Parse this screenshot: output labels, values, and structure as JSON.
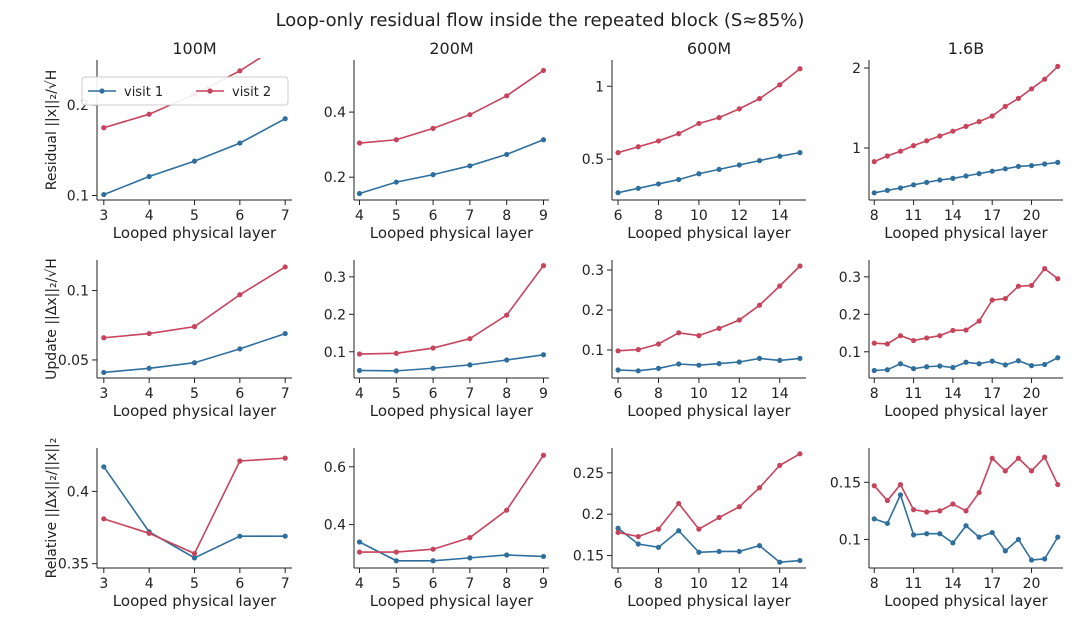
{
  "title": "Loop-only residual flow inside the repeated block (S≈85%)",
  "columns": [
    "100M",
    "200M",
    "600M",
    "1.6B"
  ],
  "row_labels": [
    "Residual  ||x||₂/√H",
    "Update  ||Δx||₂/√H",
    "Relative  ||Δx||₂/||x||₂"
  ],
  "legend": [
    {
      "name": "visit 1",
      "color": "#2e6f9e"
    },
    {
      "name": "visit 2",
      "color": "#c8435c"
    }
  ],
  "chart_data": [
    {
      "type": "line",
      "column": "100M",
      "row": "Residual",
      "xlabel": "Looped physical layer",
      "ylabel": "Residual  ||x||₂/√H",
      "x": [
        3,
        4,
        5,
        6,
        7
      ],
      "xticks": [
        3,
        4,
        5,
        6,
        7
      ],
      "xlim": [
        2.85,
        7.15
      ],
      "yticks": [
        0.1,
        0.2
      ],
      "ylim": [
        0.095,
        0.25
      ],
      "series": [
        {
          "name": "visit 1",
          "values": [
            0.101,
            0.121,
            0.138,
            0.158,
            0.185
          ]
        },
        {
          "name": "visit 2",
          "values": [
            0.175,
            0.19,
            0.212,
            0.238,
            0.27
          ]
        }
      ]
    },
    {
      "type": "line",
      "column": "200M",
      "row": "Residual",
      "xlabel": "Looped physical layer",
      "x": [
        4,
        5,
        6,
        7,
        8,
        9
      ],
      "xticks": [
        4,
        5,
        6,
        7,
        8,
        9
      ],
      "xlim": [
        3.85,
        9.15
      ],
      "yticks": [
        0.2,
        0.4
      ],
      "ylim": [
        0.13,
        0.56
      ],
      "series": [
        {
          "name": "visit 1",
          "values": [
            0.15,
            0.185,
            0.208,
            0.235,
            0.27,
            0.315
          ]
        },
        {
          "name": "visit 2",
          "values": [
            0.305,
            0.315,
            0.35,
            0.392,
            0.45,
            0.528
          ]
        }
      ]
    },
    {
      "type": "line",
      "column": "600M",
      "row": "Residual",
      "xlabel": "Looped physical layer",
      "x": [
        6,
        7,
        8,
        9,
        10,
        11,
        12,
        13,
        14,
        15
      ],
      "xticks": [
        6,
        8,
        10,
        12,
        14
      ],
      "xlim": [
        5.7,
        15.3
      ],
      "yticks": [
        0.5,
        1.0
      ],
      "ylim": [
        0.22,
        1.18
      ],
      "series": [
        {
          "name": "visit 1",
          "values": [
            0.27,
            0.3,
            0.33,
            0.36,
            0.4,
            0.43,
            0.46,
            0.49,
            0.52,
            0.545
          ]
        },
        {
          "name": "visit 2",
          "values": [
            0.545,
            0.585,
            0.625,
            0.675,
            0.745,
            0.785,
            0.845,
            0.915,
            1.01,
            1.12
          ]
        }
      ]
    },
    {
      "type": "line",
      "column": "1.6B",
      "row": "Residual",
      "xlabel": "Looped physical layer",
      "x": [
        8,
        9,
        10,
        11,
        12,
        13,
        14,
        15,
        16,
        17,
        18,
        19,
        20,
        21,
        22
      ],
      "xticks": [
        8,
        11,
        14,
        17,
        20
      ],
      "xlim": [
        7.6,
        22.4
      ],
      "yticks": [
        1,
        2
      ],
      "ylim": [
        0.35,
        2.1
      ],
      "series": [
        {
          "name": "visit 1",
          "values": [
            0.44,
            0.47,
            0.5,
            0.54,
            0.57,
            0.6,
            0.62,
            0.65,
            0.68,
            0.71,
            0.74,
            0.77,
            0.78,
            0.8,
            0.82
          ]
        },
        {
          "name": "visit 2",
          "values": [
            0.83,
            0.9,
            0.96,
            1.03,
            1.09,
            1.15,
            1.21,
            1.27,
            1.33,
            1.4,
            1.52,
            1.62,
            1.74,
            1.86,
            2.02
          ]
        }
      ]
    },
    {
      "type": "line",
      "column": "100M",
      "row": "Update",
      "xlabel": "Looped physical layer",
      "ylabel": "Update  ||Δx||₂/√H",
      "x": [
        3,
        4,
        5,
        6,
        7
      ],
      "xticks": [
        3,
        4,
        5,
        6,
        7
      ],
      "xlim": [
        2.85,
        7.15
      ],
      "yticks": [
        0.05,
        0.1
      ],
      "ylim": [
        0.037,
        0.122
      ],
      "series": [
        {
          "name": "visit 1",
          "values": [
            0.041,
            0.044,
            0.048,
            0.058,
            0.069
          ]
        },
        {
          "name": "visit 2",
          "values": [
            0.066,
            0.069,
            0.074,
            0.097,
            0.117
          ]
        }
      ]
    },
    {
      "type": "line",
      "column": "200M",
      "row": "Update",
      "xlabel": "Looped physical layer",
      "x": [
        4,
        5,
        6,
        7,
        8,
        9
      ],
      "xticks": [
        4,
        5,
        6,
        7,
        8,
        9
      ],
      "xlim": [
        3.85,
        9.15
      ],
      "yticks": [
        0.1,
        0.2,
        0.3
      ],
      "ylim": [
        0.03,
        0.345
      ],
      "series": [
        {
          "name": "visit 1",
          "values": [
            0.05,
            0.049,
            0.056,
            0.065,
            0.078,
            0.092
          ]
        },
        {
          "name": "visit 2",
          "values": [
            0.094,
            0.096,
            0.11,
            0.135,
            0.198,
            0.33
          ]
        }
      ]
    },
    {
      "type": "line",
      "column": "600M",
      "row": "Update",
      "xlabel": "Looped physical layer",
      "x": [
        6,
        7,
        8,
        9,
        10,
        11,
        12,
        13,
        14,
        15
      ],
      "xticks": [
        6,
        8,
        10,
        12,
        14
      ],
      "xlim": [
        5.7,
        15.3
      ],
      "yticks": [
        0.1,
        0.2,
        0.3
      ],
      "ylim": [
        0.03,
        0.325
      ],
      "series": [
        {
          "name": "visit 1",
          "values": [
            0.05,
            0.048,
            0.054,
            0.065,
            0.062,
            0.066,
            0.07,
            0.079,
            0.074,
            0.079
          ]
        },
        {
          "name": "visit 2",
          "values": [
            0.098,
            0.101,
            0.115,
            0.143,
            0.136,
            0.154,
            0.175,
            0.212,
            0.26,
            0.31
          ]
        }
      ]
    },
    {
      "type": "line",
      "column": "1.6B",
      "row": "Update",
      "xlabel": "Looped physical layer",
      "x": [
        8,
        9,
        10,
        11,
        12,
        13,
        14,
        15,
        16,
        17,
        18,
        19,
        20,
        21,
        22
      ],
      "xticks": [
        8,
        11,
        14,
        17,
        20
      ],
      "xlim": [
        7.6,
        22.4
      ],
      "yticks": [
        0.1,
        0.2,
        0.3
      ],
      "ylim": [
        0.03,
        0.345
      ],
      "series": [
        {
          "name": "visit 1",
          "values": [
            0.05,
            0.052,
            0.068,
            0.055,
            0.06,
            0.062,
            0.058,
            0.072,
            0.068,
            0.075,
            0.065,
            0.076,
            0.063,
            0.066,
            0.084
          ]
        },
        {
          "name": "visit 2",
          "values": [
            0.123,
            0.121,
            0.143,
            0.13,
            0.137,
            0.143,
            0.157,
            0.158,
            0.182,
            0.238,
            0.242,
            0.275,
            0.277,
            0.322,
            0.295
          ]
        }
      ]
    },
    {
      "type": "line",
      "column": "100M",
      "row": "Relative",
      "xlabel": "Looped physical layer",
      "ylabel": "Relative  ||Δx||₂/||x||₂",
      "x": [
        3,
        4,
        5,
        6,
        7
      ],
      "xticks": [
        3,
        4,
        5,
        6,
        7
      ],
      "xlim": [
        2.85,
        7.15
      ],
      "yticks": [
        0.35,
        0.4
      ],
      "ylim": [
        0.347,
        0.43
      ],
      "series": [
        {
          "name": "visit 1",
          "values": [
            0.417,
            0.372,
            0.354,
            0.369,
            0.369
          ]
        },
        {
          "name": "visit 2",
          "values": [
            0.381,
            0.371,
            0.357,
            0.421,
            0.423
          ]
        }
      ]
    },
    {
      "type": "line",
      "column": "200M",
      "row": "Relative",
      "xlabel": "Looped physical layer",
      "x": [
        4,
        5,
        6,
        7,
        8,
        9
      ],
      "xticks": [
        4,
        5,
        6,
        7,
        8,
        9
      ],
      "xlim": [
        3.85,
        9.15
      ],
      "yticks": [
        0.4,
        0.6
      ],
      "ylim": [
        0.25,
        0.665
      ],
      "series": [
        {
          "name": "visit 1",
          "values": [
            0.34,
            0.275,
            0.275,
            0.285,
            0.295,
            0.29
          ]
        },
        {
          "name": "visit 2",
          "values": [
            0.305,
            0.305,
            0.315,
            0.355,
            0.45,
            0.64
          ]
        }
      ]
    },
    {
      "type": "line",
      "column": "600M",
      "row": "Relative",
      "xlabel": "Looped physical layer",
      "x": [
        6,
        7,
        8,
        9,
        10,
        11,
        12,
        13,
        14,
        15
      ],
      "xticks": [
        6,
        8,
        10,
        12,
        14
      ],
      "xlim": [
        5.7,
        15.3
      ],
      "yticks": [
        0.15,
        0.2,
        0.25
      ],
      "ylim": [
        0.135,
        0.28
      ],
      "series": [
        {
          "name": "visit 1",
          "values": [
            0.183,
            0.164,
            0.16,
            0.18,
            0.154,
            0.155,
            0.155,
            0.162,
            0.142,
            0.144
          ]
        },
        {
          "name": "visit 2",
          "values": [
            0.178,
            0.173,
            0.182,
            0.213,
            0.182,
            0.196,
            0.209,
            0.232,
            0.259,
            0.273
          ]
        }
      ]
    },
    {
      "type": "line",
      "column": "1.6B",
      "row": "Relative",
      "xlabel": "Looped physical layer",
      "x": [
        8,
        9,
        10,
        11,
        12,
        13,
        14,
        15,
        16,
        17,
        18,
        19,
        20,
        21,
        22
      ],
      "xticks": [
        8,
        11,
        14,
        17,
        20
      ],
      "xlim": [
        7.6,
        22.4
      ],
      "yticks": [
        0.1,
        0.15
      ],
      "ylim": [
        0.075,
        0.18
      ],
      "series": [
        {
          "name": "visit 1",
          "values": [
            0.118,
            0.114,
            0.139,
            0.104,
            0.105,
            0.105,
            0.097,
            0.112,
            0.102,
            0.106,
            0.09,
            0.1,
            0.082,
            0.083,
            0.102
          ]
        },
        {
          "name": "visit 2",
          "values": [
            0.147,
            0.134,
            0.148,
            0.126,
            0.124,
            0.125,
            0.131,
            0.125,
            0.141,
            0.171,
            0.16,
            0.171,
            0.16,
            0.172,
            0.148
          ]
        }
      ]
    }
  ]
}
